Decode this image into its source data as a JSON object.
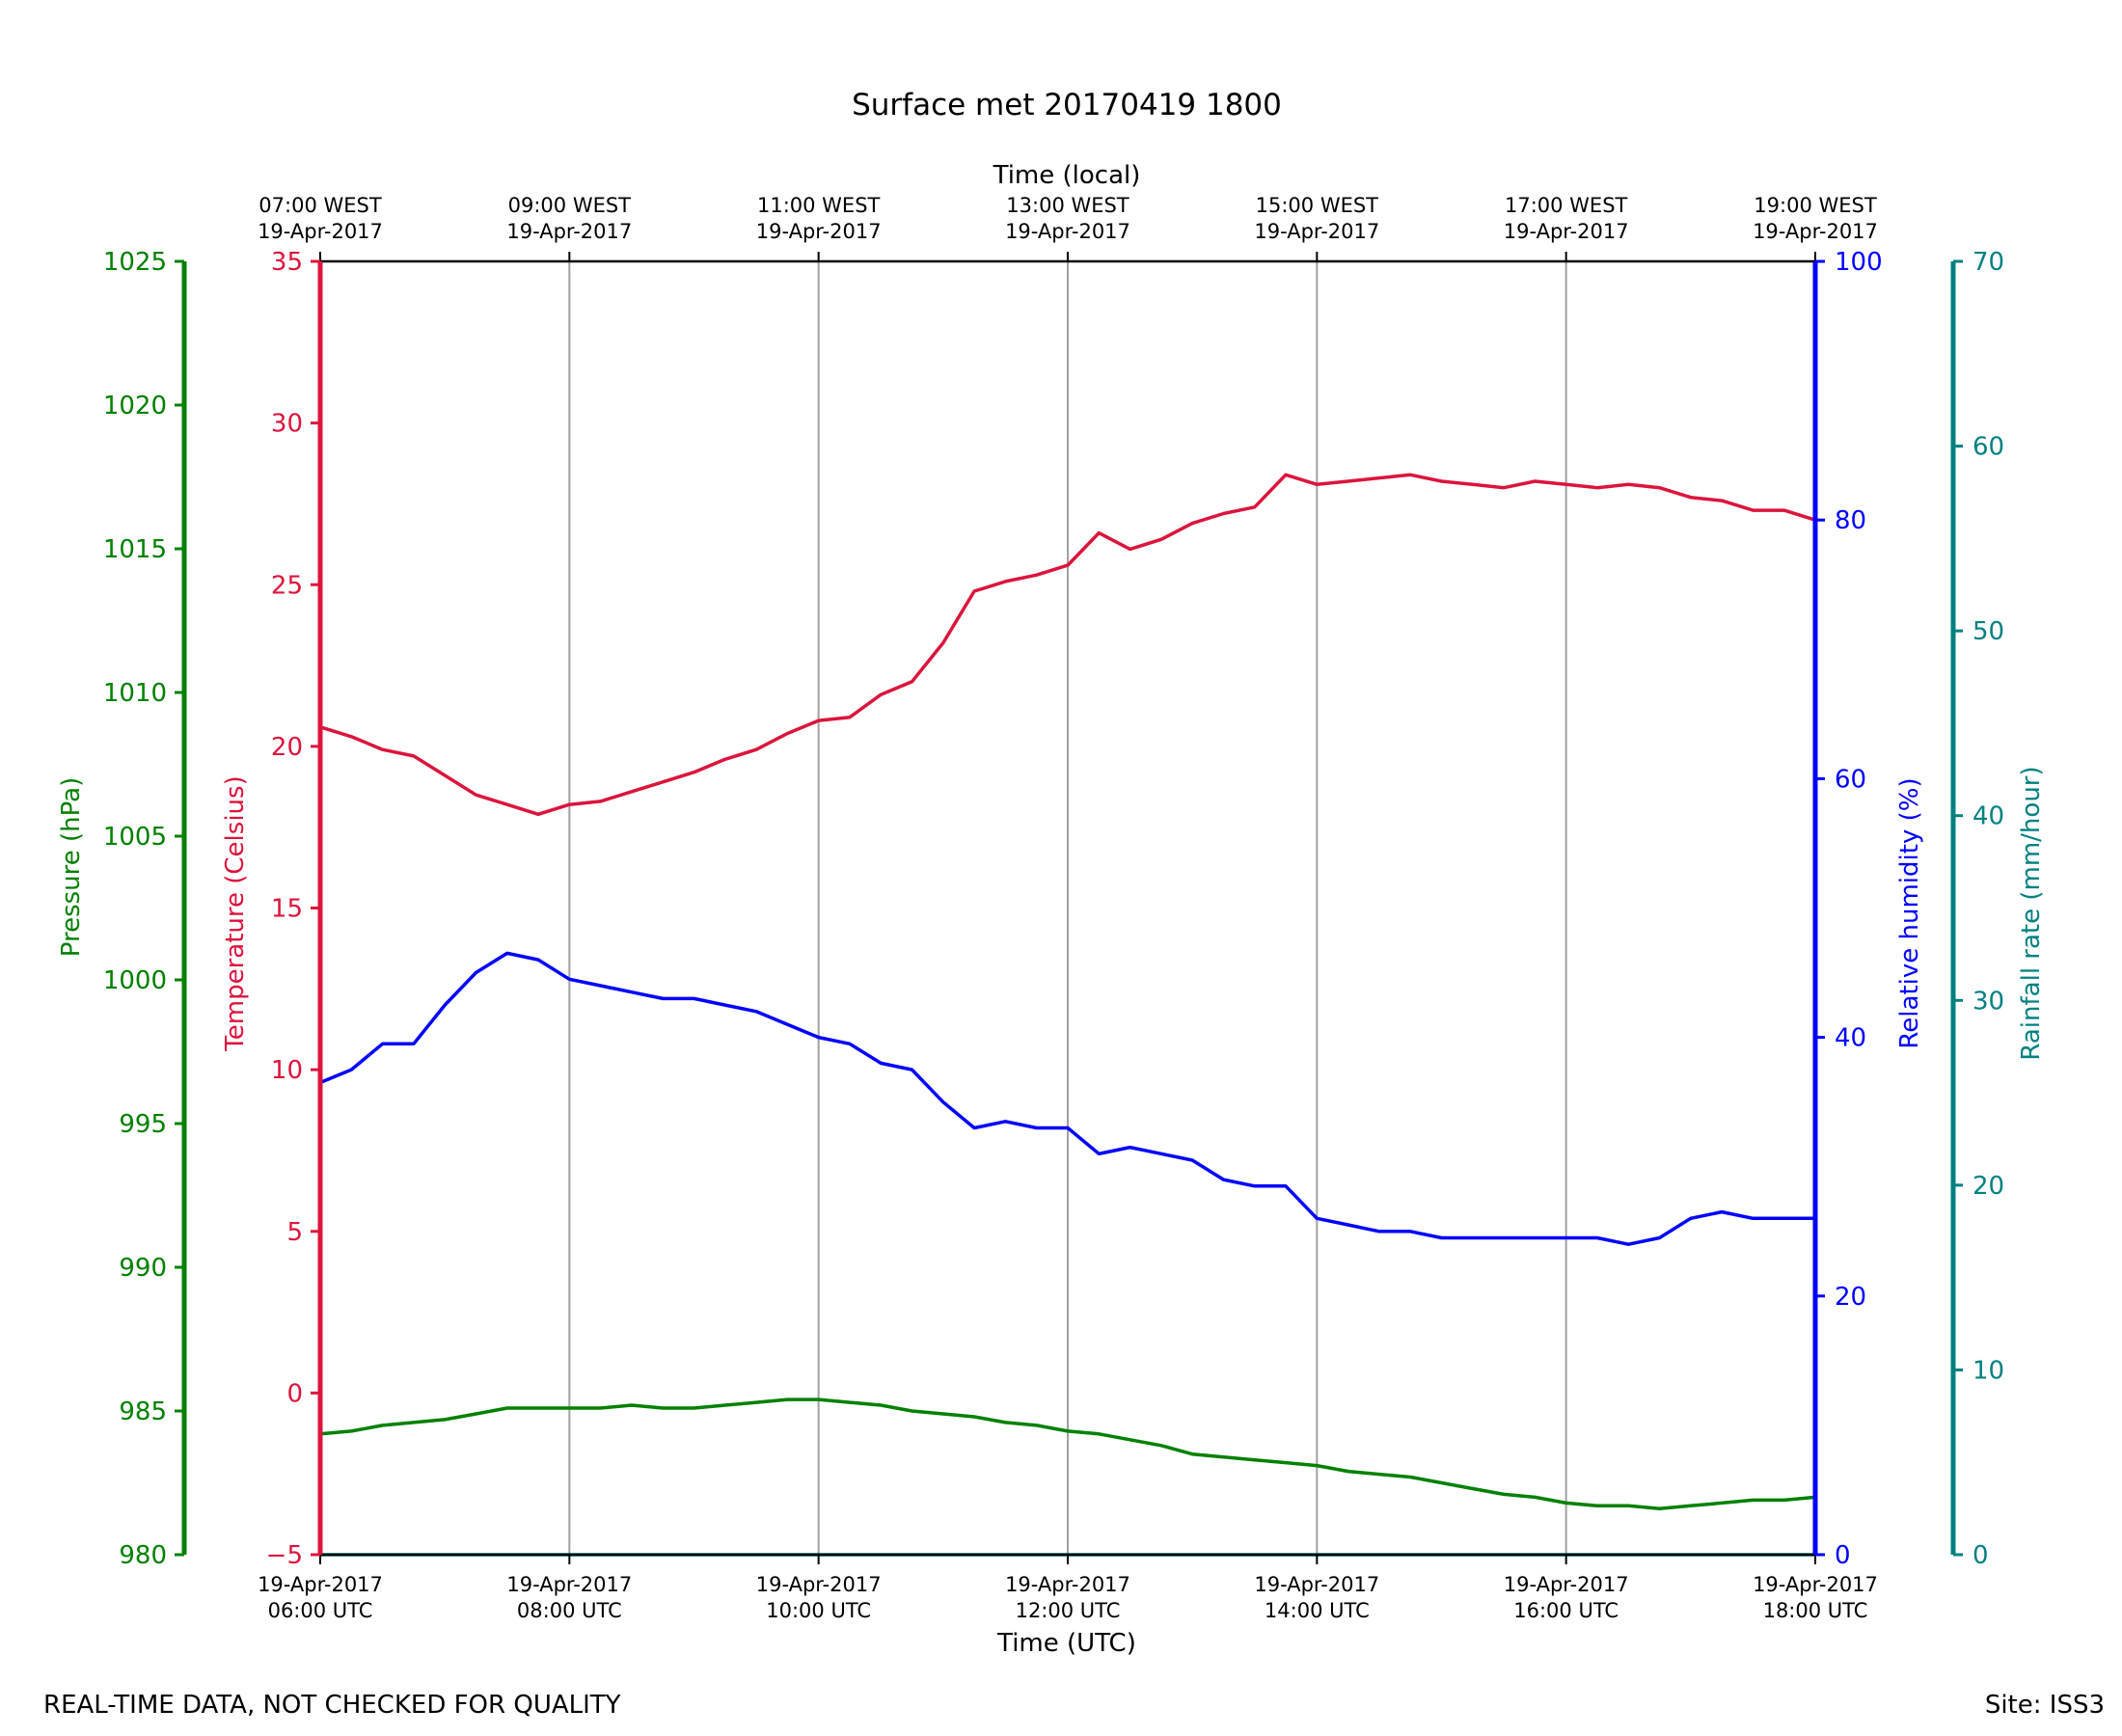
{
  "chart_data": {
    "type": "line",
    "title": "Surface met 20170419 1800",
    "top_axis": {
      "label": "Time (local)",
      "ticks": [
        {
          "time": "07:00 WEST",
          "date": "19-Apr-2017"
        },
        {
          "time": "09:00 WEST",
          "date": "19-Apr-2017"
        },
        {
          "time": "11:00 WEST",
          "date": "19-Apr-2017"
        },
        {
          "time": "13:00 WEST",
          "date": "19-Apr-2017"
        },
        {
          "time": "15:00 WEST",
          "date": "19-Apr-2017"
        },
        {
          "time": "17:00 WEST",
          "date": "19-Apr-2017"
        },
        {
          "time": "19:00 WEST",
          "date": "19-Apr-2017"
        }
      ]
    },
    "bottom_axis": {
      "label": "Time (UTC)",
      "range_hours": [
        6,
        18
      ],
      "ticks": [
        {
          "date": "19-Apr-2017",
          "time": "06:00 UTC"
        },
        {
          "date": "19-Apr-2017",
          "time": "08:00 UTC"
        },
        {
          "date": "19-Apr-2017",
          "time": "10:00 UTC"
        },
        {
          "date": "19-Apr-2017",
          "time": "12:00 UTC"
        },
        {
          "date": "19-Apr-2017",
          "time": "14:00 UTC"
        },
        {
          "date": "19-Apr-2017",
          "time": "16:00 UTC"
        },
        {
          "date": "19-Apr-2017",
          "time": "18:00 UTC"
        }
      ]
    },
    "axes": {
      "pressure": {
        "label": "Pressure (hPa)",
        "ylim": [
          980,
          1025
        ],
        "ticks": [
          980,
          985,
          990,
          995,
          1000,
          1005,
          1010,
          1015,
          1020,
          1025
        ],
        "color": "#008000"
      },
      "temperature": {
        "label": "Temperature (Celsius)",
        "ylim": [
          -5,
          35
        ],
        "ticks": [
          -5,
          0,
          5,
          10,
          15,
          20,
          25,
          30,
          35
        ],
        "color": "#dc143c"
      },
      "humidity": {
        "label": "Relative humidity (%)",
        "ylim": [
          0,
          100
        ],
        "ticks": [
          0,
          20,
          40,
          60,
          80,
          100
        ],
        "color": "#0000ff"
      },
      "rainfall": {
        "label": "Rainfall rate (mm/hour)",
        "ylim": [
          0,
          70
        ],
        "ticks": [
          0,
          10,
          20,
          30,
          40,
          50,
          60,
          70
        ],
        "color": "#008080"
      }
    },
    "series": [
      {
        "name": "Temperature",
        "axis": "temperature",
        "color": "#dc143c",
        "x": [
          6.0,
          6.25,
          6.5,
          6.75,
          7.0,
          7.25,
          7.5,
          7.75,
          8.0,
          8.25,
          8.5,
          8.75,
          9.0,
          9.25,
          9.5,
          9.75,
          10.0,
          10.25,
          10.5,
          10.75,
          11.0,
          11.25,
          11.5,
          11.75,
          12.0,
          12.25,
          12.5,
          12.75,
          13.0,
          13.25,
          13.5,
          13.75,
          14.0,
          14.25,
          14.5,
          14.75,
          15.0,
          15.25,
          15.5,
          15.75,
          16.0,
          16.25,
          16.5,
          16.75,
          17.0,
          17.25,
          17.5,
          17.75,
          18.0
        ],
        "values": [
          20.6,
          20.3,
          19.9,
          19.7,
          19.1,
          18.5,
          18.2,
          17.9,
          18.2,
          18.3,
          18.6,
          18.9,
          19.2,
          19.6,
          19.9,
          20.4,
          20.8,
          20.9,
          21.6,
          22.0,
          23.2,
          24.8,
          25.1,
          25.3,
          25.6,
          26.6,
          26.1,
          26.4,
          26.9,
          27.2,
          27.4,
          28.4,
          28.1,
          28.2,
          28.3,
          28.4,
          28.2,
          28.1,
          28.0,
          28.2,
          28.1,
          28.0,
          28.1,
          28.0,
          27.7,
          27.6,
          27.3,
          27.3,
          27.0
        ]
      },
      {
        "name": "Relative humidity",
        "axis": "humidity",
        "color": "#0000ff",
        "x": [
          6.0,
          6.25,
          6.5,
          6.75,
          7.0,
          7.25,
          7.5,
          7.75,
          8.0,
          8.25,
          8.5,
          8.75,
          9.0,
          9.25,
          9.5,
          9.75,
          10.0,
          10.25,
          10.5,
          10.75,
          11.0,
          11.25,
          11.5,
          11.75,
          12.0,
          12.25,
          12.5,
          12.75,
          13.0,
          13.25,
          13.5,
          13.75,
          14.0,
          14.25,
          14.5,
          14.75,
          15.0,
          15.25,
          15.5,
          15.75,
          16.0,
          16.25,
          16.5,
          16.75,
          17.0,
          17.25,
          17.5,
          17.75,
          18.0
        ],
        "values": [
          36.5,
          37.5,
          39.5,
          39.5,
          42.5,
          45.0,
          46.5,
          46.0,
          44.5,
          44.0,
          43.5,
          43.0,
          43.0,
          42.5,
          42.0,
          41.0,
          40.0,
          39.5,
          38.0,
          37.5,
          35.0,
          33.0,
          33.5,
          33.0,
          33.0,
          31.0,
          31.5,
          31.0,
          30.5,
          29.0,
          28.5,
          28.5,
          26.0,
          25.5,
          25.0,
          25.0,
          24.5,
          24.5,
          24.5,
          24.5,
          24.5,
          24.5,
          24.0,
          24.5,
          26.0,
          26.5,
          26.0,
          26.0,
          26.0
        ]
      },
      {
        "name": "Pressure",
        "axis": "pressure",
        "color": "#008000",
        "x": [
          6.0,
          6.25,
          6.5,
          6.75,
          7.0,
          7.25,
          7.5,
          7.75,
          8.0,
          8.25,
          8.5,
          8.75,
          9.0,
          9.25,
          9.5,
          9.75,
          10.0,
          10.25,
          10.5,
          10.75,
          11.0,
          11.25,
          11.5,
          11.75,
          12.0,
          12.25,
          12.5,
          12.75,
          13.0,
          13.25,
          13.5,
          13.75,
          14.0,
          14.25,
          14.5,
          14.75,
          15.0,
          15.25,
          15.5,
          15.75,
          16.0,
          16.25,
          16.5,
          16.75,
          17.0,
          17.25,
          17.5,
          17.75,
          18.0
        ],
        "values": [
          984.2,
          984.3,
          984.5,
          984.6,
          984.7,
          984.9,
          985.1,
          985.1,
          985.1,
          985.1,
          985.2,
          985.1,
          985.1,
          985.2,
          985.3,
          985.4,
          985.4,
          985.3,
          985.2,
          985.0,
          984.9,
          984.8,
          984.6,
          984.5,
          984.3,
          984.2,
          984.0,
          983.8,
          983.5,
          983.4,
          983.3,
          983.2,
          983.1,
          982.9,
          982.8,
          982.7,
          982.5,
          982.3,
          982.1,
          982.0,
          981.8,
          981.7,
          981.7,
          981.6,
          981.7,
          981.8,
          981.9,
          981.9,
          982.0
        ]
      },
      {
        "name": "Rainfall rate",
        "axis": "rainfall",
        "color": "#008080",
        "x": [
          6.0,
          18.0
        ],
        "values": [
          0,
          0
        ]
      }
    ],
    "grid": "vertical"
  },
  "footer": {
    "left": "REAL-TIME DATA, NOT CHECKED FOR QUALITY",
    "right": "Site: ISS3"
  }
}
